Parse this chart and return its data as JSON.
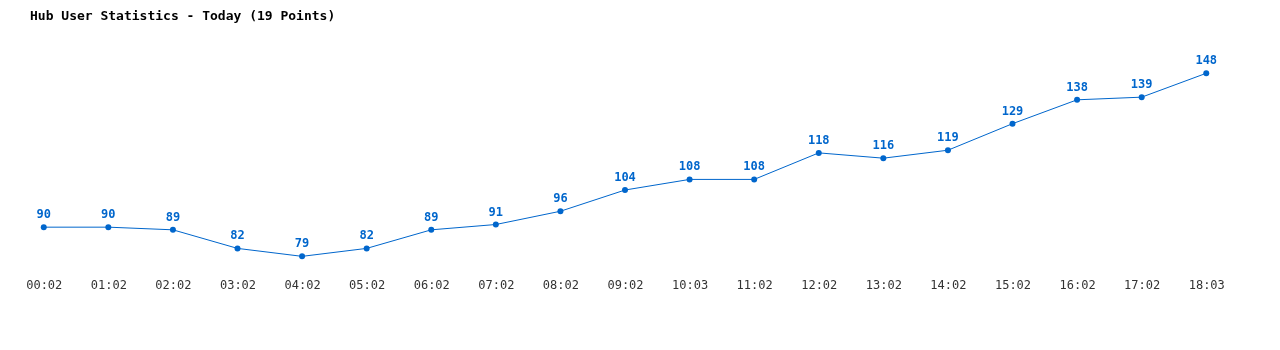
{
  "chart_data": {
    "type": "line",
    "title": "Hub User Statistics - Today (19 Points)",
    "categories": [
      "00:02",
      "01:02",
      "02:02",
      "03:02",
      "04:02",
      "05:02",
      "06:02",
      "07:02",
      "08:02",
      "09:02",
      "10:03",
      "11:02",
      "12:02",
      "13:02",
      "14:02",
      "15:02",
      "16:02",
      "17:02",
      "18:03"
    ],
    "series": [
      {
        "color": "#0066cc",
        "values": [
          90,
          90,
          89,
          82,
          79,
          82,
          89,
          91,
          96,
          104,
          108,
          108,
          118,
          116,
          119,
          129,
          138,
          139,
          148
        ]
      }
    ],
    "data_labels": true,
    "marker": "circle",
    "line_style": "solid",
    "grid": false,
    "tick_labels": "x"
  }
}
